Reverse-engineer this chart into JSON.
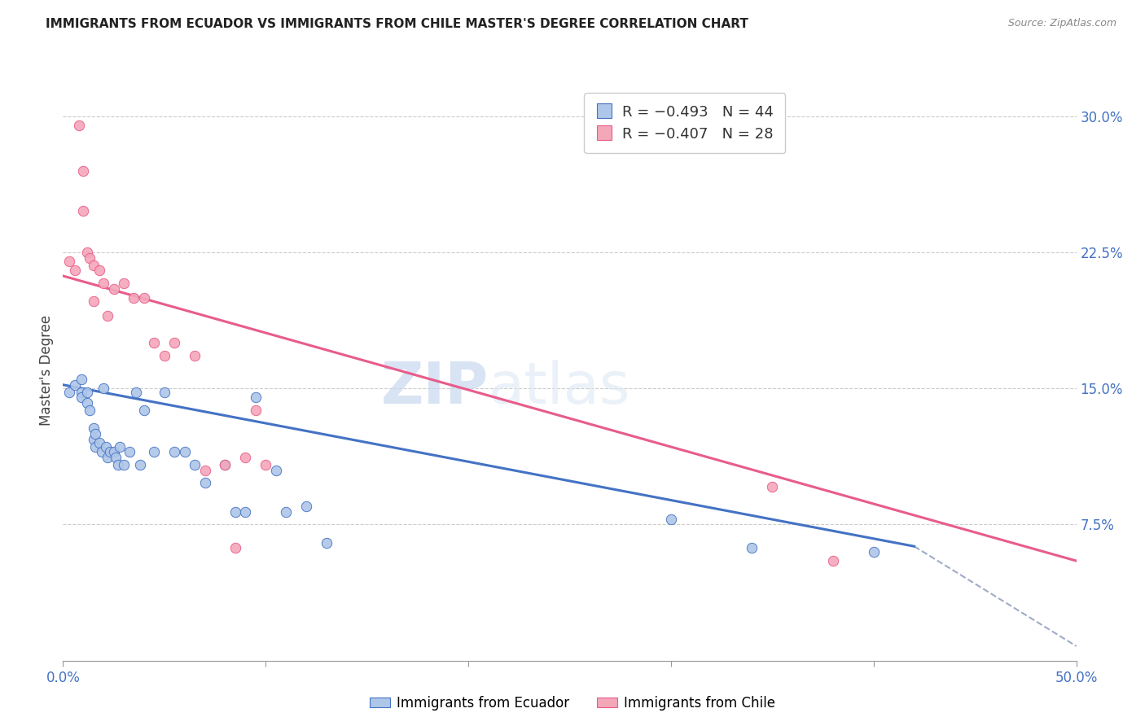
{
  "title": "IMMIGRANTS FROM ECUADOR VS IMMIGRANTS FROM CHILE MASTER'S DEGREE CORRELATION CHART",
  "source": "Source: ZipAtlas.com",
  "ylabel": "Master's Degree",
  "right_yticks": [
    "30.0%",
    "22.5%",
    "15.0%",
    "7.5%"
  ],
  "right_ytick_vals": [
    0.3,
    0.225,
    0.15,
    0.075
  ],
  "watermark_zip": "ZIP",
  "watermark_atlas": "atlas",
  "legend_ecuador": "R = −0.493   N = 44",
  "legend_chile": "R = −0.407   N = 28",
  "ecuador_color": "#aec6e8",
  "chile_color": "#f4a7b9",
  "ecuador_line_color": "#4472c4",
  "chile_line_color": "#e85c8a",
  "xlim": [
    0.0,
    0.5
  ],
  "ylim": [
    0.0,
    0.32
  ],
  "ecuador_scatter_x": [
    0.003,
    0.006,
    0.009,
    0.009,
    0.009,
    0.012,
    0.012,
    0.013,
    0.015,
    0.015,
    0.016,
    0.016,
    0.018,
    0.019,
    0.02,
    0.021,
    0.022,
    0.023,
    0.025,
    0.026,
    0.027,
    0.028,
    0.03,
    0.033,
    0.036,
    0.038,
    0.04,
    0.045,
    0.05,
    0.055,
    0.06,
    0.065,
    0.07,
    0.08,
    0.085,
    0.09,
    0.095,
    0.105,
    0.11,
    0.12,
    0.13,
    0.3,
    0.34,
    0.4
  ],
  "ecuador_scatter_y": [
    0.148,
    0.152,
    0.148,
    0.155,
    0.145,
    0.142,
    0.148,
    0.138,
    0.128,
    0.122,
    0.118,
    0.125,
    0.12,
    0.115,
    0.15,
    0.118,
    0.112,
    0.115,
    0.115,
    0.112,
    0.108,
    0.118,
    0.108,
    0.115,
    0.148,
    0.108,
    0.138,
    0.115,
    0.148,
    0.115,
    0.115,
    0.108,
    0.098,
    0.108,
    0.082,
    0.082,
    0.145,
    0.105,
    0.082,
    0.085,
    0.065,
    0.078,
    0.062,
    0.06
  ],
  "chile_scatter_x": [
    0.003,
    0.006,
    0.008,
    0.01,
    0.01,
    0.012,
    0.013,
    0.015,
    0.015,
    0.018,
    0.02,
    0.022,
    0.025,
    0.03,
    0.035,
    0.04,
    0.045,
    0.05,
    0.055,
    0.065,
    0.07,
    0.08,
    0.085,
    0.09,
    0.095,
    0.1,
    0.35,
    0.38
  ],
  "chile_scatter_y": [
    0.22,
    0.215,
    0.295,
    0.27,
    0.248,
    0.225,
    0.222,
    0.218,
    0.198,
    0.215,
    0.208,
    0.19,
    0.205,
    0.208,
    0.2,
    0.2,
    0.175,
    0.168,
    0.175,
    0.168,
    0.105,
    0.108,
    0.062,
    0.112,
    0.138,
    0.108,
    0.096,
    0.055
  ],
  "ecuador_line_x": [
    0.0,
    0.42
  ],
  "ecuador_line_y": [
    0.152,
    0.063
  ],
  "chile_line_x": [
    0.0,
    0.5
  ],
  "chile_line_y": [
    0.212,
    0.055
  ],
  "dashed_line_x": [
    0.42,
    0.5
  ],
  "dashed_line_y": [
    0.063,
    0.008
  ],
  "xtick_positions": [
    0.0,
    0.1,
    0.2,
    0.3,
    0.4,
    0.5
  ],
  "xtick_labels": [
    "0.0%",
    "",
    "",
    "",
    "",
    "50.0%"
  ],
  "tick_color": "#4472c4",
  "grid_color": "#cccccc",
  "title_fontsize": 11,
  "source_fontsize": 9,
  "axis_fontsize": 12
}
